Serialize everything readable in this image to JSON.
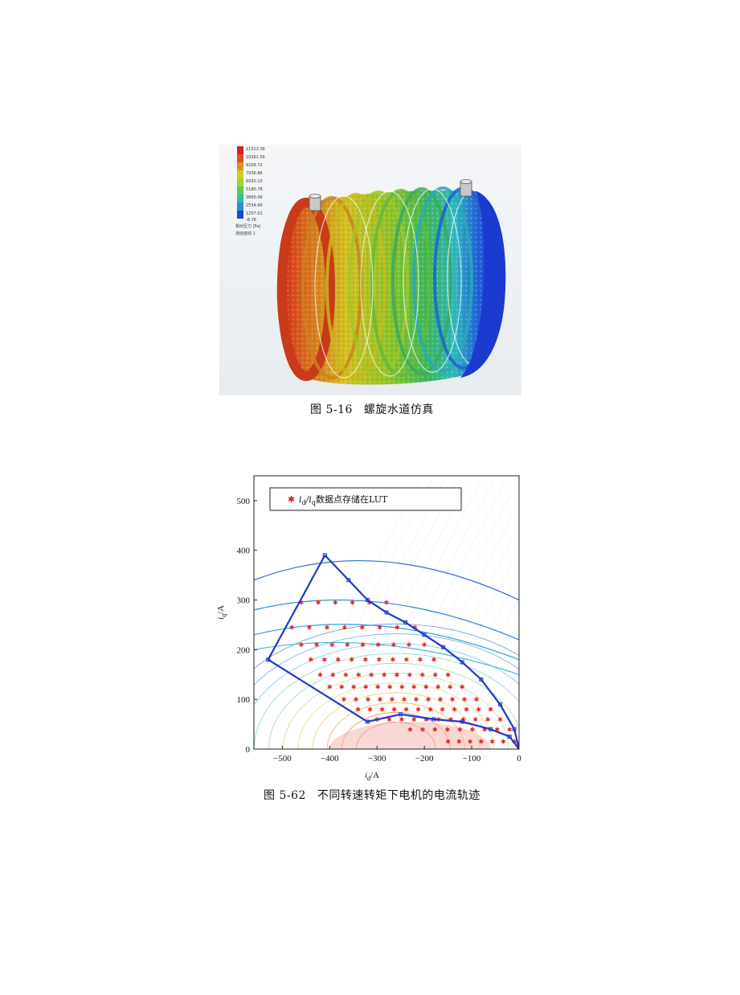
{
  "figure1": {
    "caption_number": "图 5-16",
    "caption_text": "螺旋水道仿真",
    "legend_values": [
      "11513.36",
      "10361.56",
      "9209.72",
      "7936.86",
      "6930.10",
      "5180.78",
      "3860.06",
      "2534.66",
      "1257.01",
      "-8.76"
    ],
    "legend_labels": [
      "相对压力 [Pa]",
      "流动迹线 1"
    ],
    "colors": {
      "red": "#d8201a",
      "orange": "#d8681e",
      "yellow": "#d4c020",
      "green": "#6cc030",
      "cyan": "#30c0b0",
      "blue": "#1838d0"
    }
  },
  "figure2": {
    "caption_number": "图 5-62",
    "caption_text": "不同转速转矩下电机的电流轨迹",
    "chart_data": {
      "type": "scatter",
      "title": "",
      "legend": {
        "text_prefix": "i",
        "text_sub1": "d",
        "text_mid": "/i",
        "text_sub2": "q",
        "text_suffix": "数据点存储在LUT",
        "placement": "top-left"
      },
      "xlabel_main": "i",
      "xlabel_sub": "d",
      "xlabel_unit": "/A",
      "ylabel_main": "i",
      "ylabel_sub": "q",
      "ylabel_unit": "/A",
      "xlim": [
        -560,
        0
      ],
      "ylim": [
        0,
        550
      ],
      "xticks": [
        -500,
        -400,
        -300,
        -200,
        -100,
        0
      ],
      "xtick_labels": [
        "−500",
        "−400",
        "−300",
        "−200",
        "−100",
        "0"
      ],
      "yticks": [
        0,
        100,
        200,
        300,
        400,
        500
      ],
      "ytick_labels": [
        "0",
        "100",
        "200",
        "300",
        "400",
        "500"
      ],
      "boundary": {
        "x": [
          -410,
          -530,
          -320,
          -250,
          -180,
          -120,
          -60,
          -20,
          0,
          -10,
          -40,
          -80,
          -120,
          -160,
          -200,
          -240,
          -280,
          -320,
          -360,
          -410
        ],
        "y": [
          390,
          180,
          55,
          70,
          60,
          55,
          40,
          25,
          0,
          40,
          90,
          140,
          175,
          205,
          230,
          255,
          275,
          300,
          340,
          390
        ]
      },
      "lut_rows": [
        {
          "y": 295,
          "x_start": -460,
          "x_end": -280,
          "n": 6
        },
        {
          "y": 245,
          "x_start": -480,
          "x_end": -220,
          "n": 8
        },
        {
          "y": 210,
          "x_start": -460,
          "x_end": -200,
          "n": 9
        },
        {
          "y": 180,
          "x_start": -440,
          "x_end": -180,
          "n": 10
        },
        {
          "y": 150,
          "x_start": -420,
          "x_end": -150,
          "n": 11
        },
        {
          "y": 125,
          "x_start": -400,
          "x_end": -120,
          "n": 12
        },
        {
          "y": 100,
          "x_start": -370,
          "x_end": -90,
          "n": 12
        },
        {
          "y": 80,
          "x_start": -340,
          "x_end": -60,
          "n": 12
        },
        {
          "y": 60,
          "x_start": -300,
          "x_end": -40,
          "n": 11
        },
        {
          "y": 40,
          "x_start": -230,
          "x_end": -20,
          "n": 9
        },
        {
          "y": 15,
          "x_start": -150,
          "x_end": -10,
          "n": 7
        }
      ],
      "colors": {
        "boundary": "#2038c8",
        "lut_points": "#e02020"
      }
    }
  }
}
